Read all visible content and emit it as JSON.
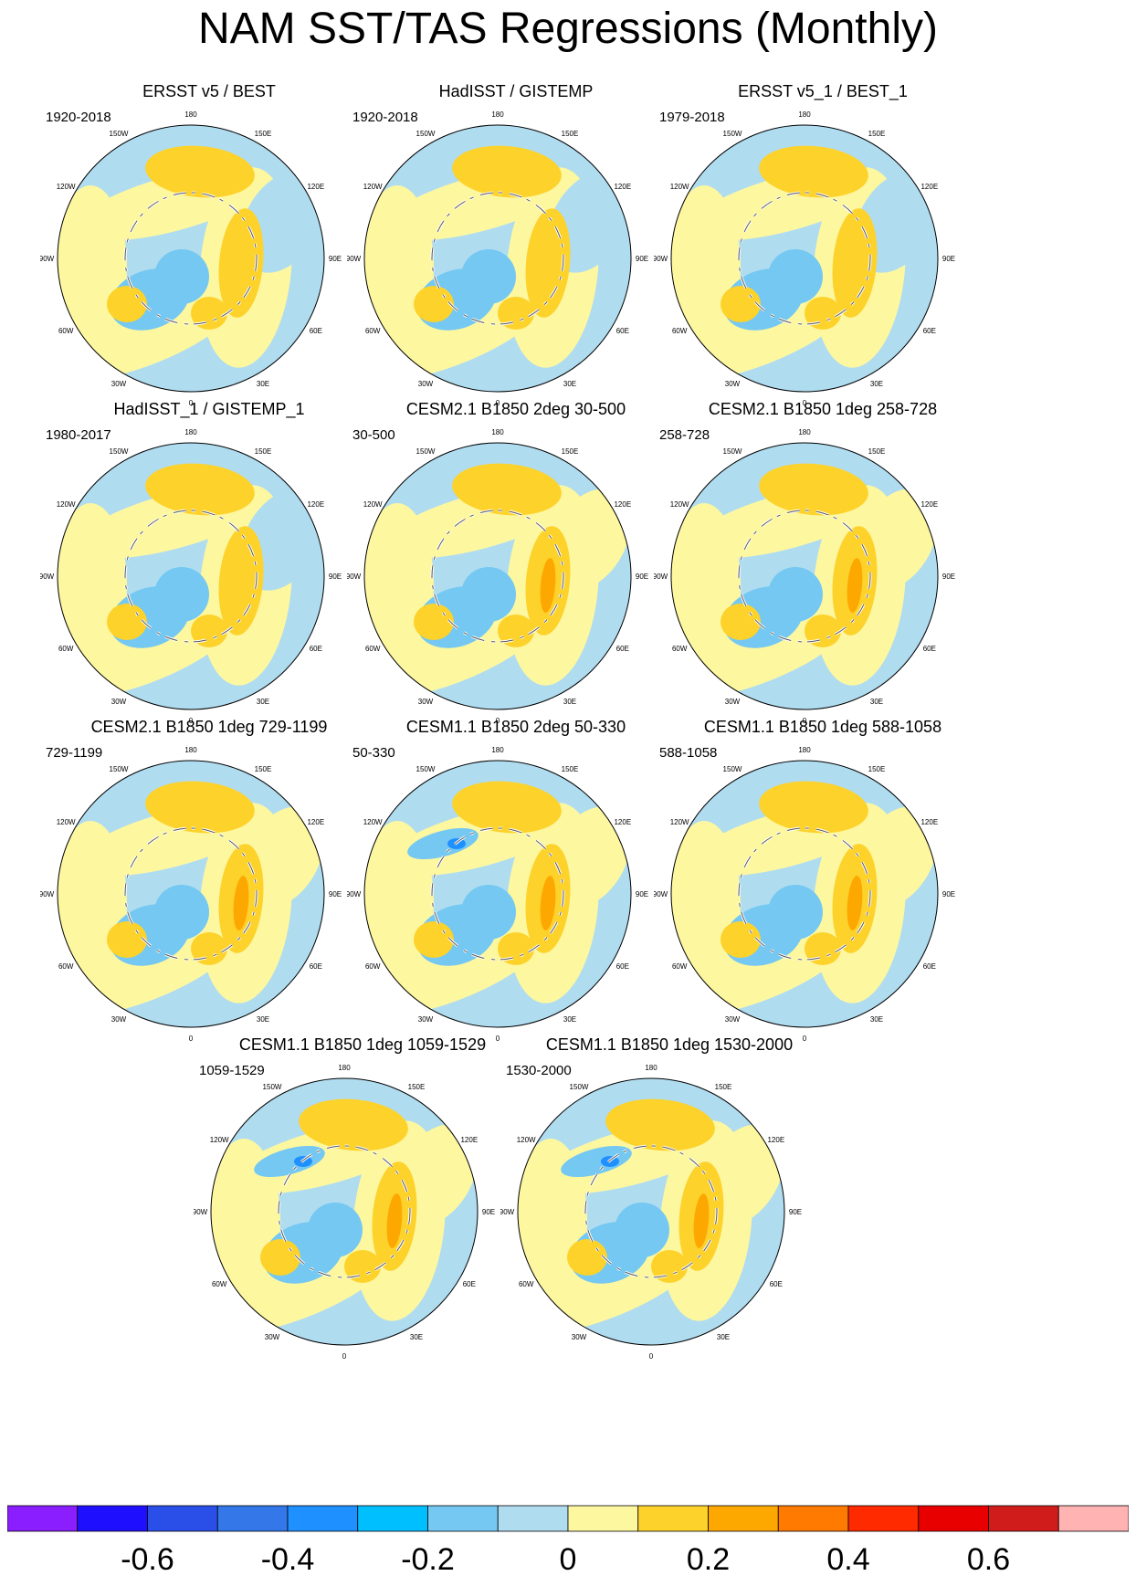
{
  "title": "NAM SST/TAS Regressions (Monthly)",
  "lon_labels": [
    "180",
    "150E",
    "120E",
    "90E",
    "60E",
    "30E",
    "0",
    "30W",
    "60W",
    "90W",
    "120W",
    "150W"
  ],
  "panels": [
    {
      "title": "ERSST v5 / BEST",
      "period": "1920-2018"
    },
    {
      "title": "HadISST / GISTEMP",
      "period": "1920-2018"
    },
    {
      "title": "ERSST v5_1 / BEST_1",
      "period": "1979-2018"
    },
    {
      "title": "HadISST_1 / GISTEMP_1",
      "period": "1980-2017"
    },
    {
      "title": "CESM2.1 B1850 2deg 30-500",
      "period": "30-500"
    },
    {
      "title": "CESM2.1 B1850 1deg 258-728",
      "period": "258-728"
    },
    {
      "title": "CESM2.1 B1850 1deg 729-1199",
      "period": "729-1199"
    },
    {
      "title": "CESM1.1 B1850 2deg 50-330",
      "period": "50-330"
    },
    {
      "title": "CESM1.1 B1850 1deg 588-1058",
      "period": "588-1058"
    },
    {
      "title": "CESM1.1 B1850 1deg 1059-1529",
      "period": "1059-1529"
    },
    {
      "title": "CESM1.1 B1850 1deg 1530-2000",
      "period": "1530-2000"
    }
  ],
  "colorbar": {
    "colors": [
      "#8a1eff",
      "#1e10ff",
      "#2a4fe8",
      "#3377e8",
      "#1f90ff",
      "#00bfff",
      "#74c8f2",
      "#b0dcf0",
      "#fdf7a0",
      "#fdd22b",
      "#fda800",
      "#ff7a00",
      "#ff2a00",
      "#e80000",
      "#d11c1c",
      "#ffb3b3"
    ],
    "labels": [
      "-0.6",
      "-0.4",
      "-0.2",
      "0",
      "0.2",
      "0.4",
      "0.6"
    ]
  },
  "palette": {
    "ocean_base": "#b0dcf0",
    "weak_positive": "#fdf7a0",
    "positive": "#fdd22b",
    "strong_positive": "#fda800",
    "negative": "#74c8f2",
    "strong_negative": "#1f90ff",
    "coast": "#555555"
  }
}
